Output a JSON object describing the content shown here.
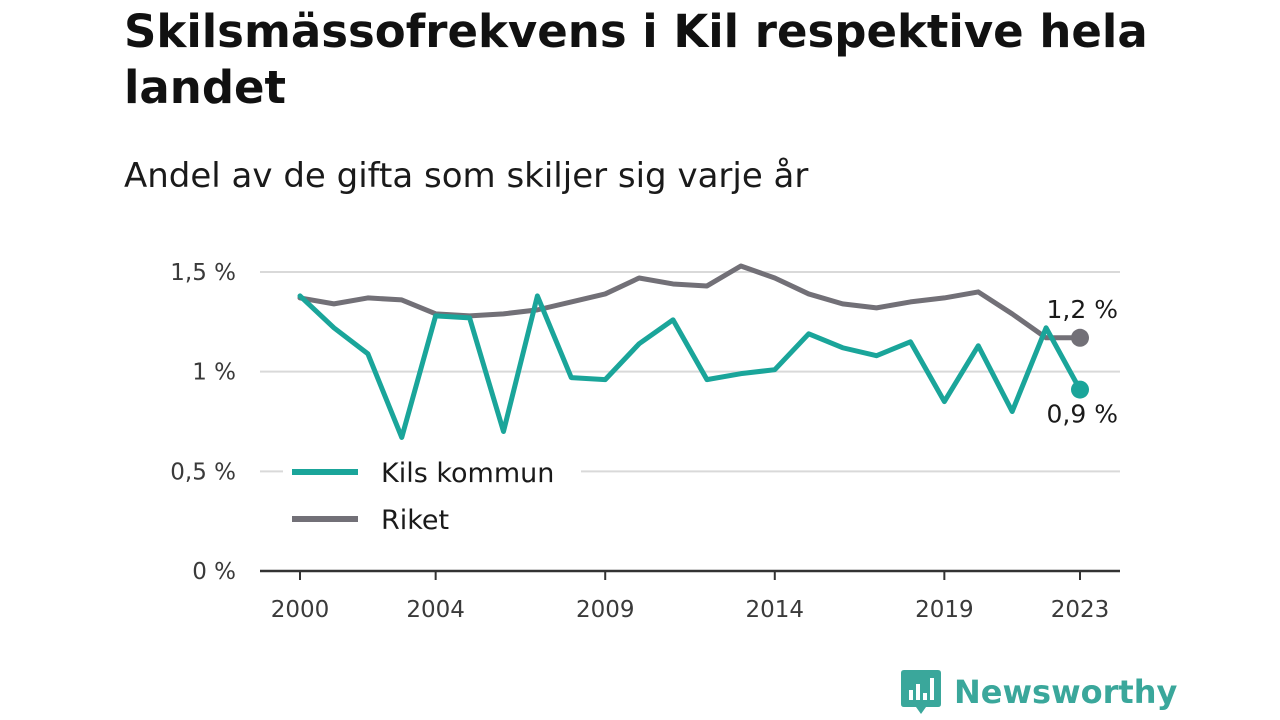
{
  "title": "Skilsmässofrekvens i Kil respektive hela landet",
  "subtitle": "Andel av de gifta som skiljer sig varje år",
  "brand": {
    "name": "Newsworthy",
    "color": "#3aa79b",
    "icon": "newsworthy-logo-icon"
  },
  "chart_data": {
    "type": "line",
    "title": "Skilsmässofrekvens i Kil respektive hela landet",
    "subtitle": "Andel av de gifta som skiljer sig varje år",
    "x": [
      2000,
      2001,
      2002,
      2003,
      2004,
      2005,
      2006,
      2007,
      2008,
      2009,
      2010,
      2011,
      2012,
      2013,
      2014,
      2015,
      2016,
      2017,
      2018,
      2019,
      2020,
      2021,
      2022,
      2023
    ],
    "xticks": [
      2000,
      2004,
      2009,
      2014,
      2019,
      2023
    ],
    "xtick_labels": [
      "2000",
      "2004",
      "2009",
      "2014",
      "2019",
      "2023"
    ],
    "yticks": [
      0,
      0.5,
      1,
      1.5
    ],
    "ytick_labels": [
      "0 %",
      "0,5 %",
      "1 %",
      "1,5 %"
    ],
    "ylim": [
      0,
      1.5
    ],
    "grid": true,
    "legend_position": "lower-left",
    "series": [
      {
        "name": "Kils kommun",
        "color": "#1aa59a",
        "values": [
          1.38,
          1.22,
          1.09,
          0.67,
          1.28,
          1.27,
          0.7,
          1.38,
          0.97,
          0.96,
          1.14,
          1.26,
          0.96,
          0.99,
          1.01,
          1.19,
          1.12,
          1.08,
          1.15,
          0.85,
          1.13,
          0.8,
          1.22,
          0.91
        ],
        "end_label": "0,9 %"
      },
      {
        "name": "Riket",
        "color": "#727077",
        "values": [
          1.37,
          1.34,
          1.37,
          1.36,
          1.29,
          1.28,
          1.29,
          1.31,
          1.35,
          1.39,
          1.47,
          1.44,
          1.43,
          1.53,
          1.47,
          1.39,
          1.34,
          1.32,
          1.35,
          1.37,
          1.4,
          1.29,
          1.17,
          1.17
        ],
        "end_label": "1,2 %"
      }
    ]
  }
}
